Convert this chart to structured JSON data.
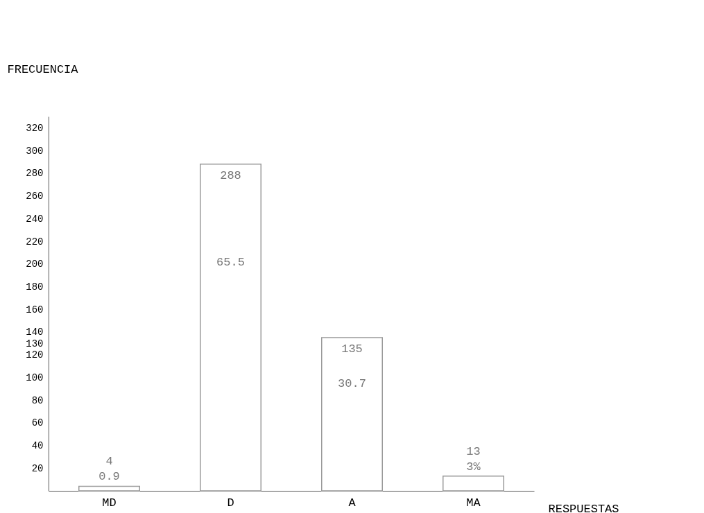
{
  "chart_data": {
    "type": "bar",
    "xlabel": "RESPUESTAS",
    "ylabel": "FRECUENCIA",
    "categories": [
      "MD",
      "D",
      "A",
      "MA"
    ],
    "values": [
      4,
      288,
      135,
      13
    ],
    "color": "#9a9a9a",
    "data_labels": true,
    "ylim": [
      0,
      330
    ],
    "yticks": [
      20,
      40,
      60,
      80,
      100,
      120,
      130,
      140,
      160,
      180,
      200,
      220,
      240,
      260,
      280,
      300,
      320
    ],
    "grid": false,
    "annotations": [
      "0.9",
      "65.5",
      "30.7",
      "3%"
    ]
  }
}
